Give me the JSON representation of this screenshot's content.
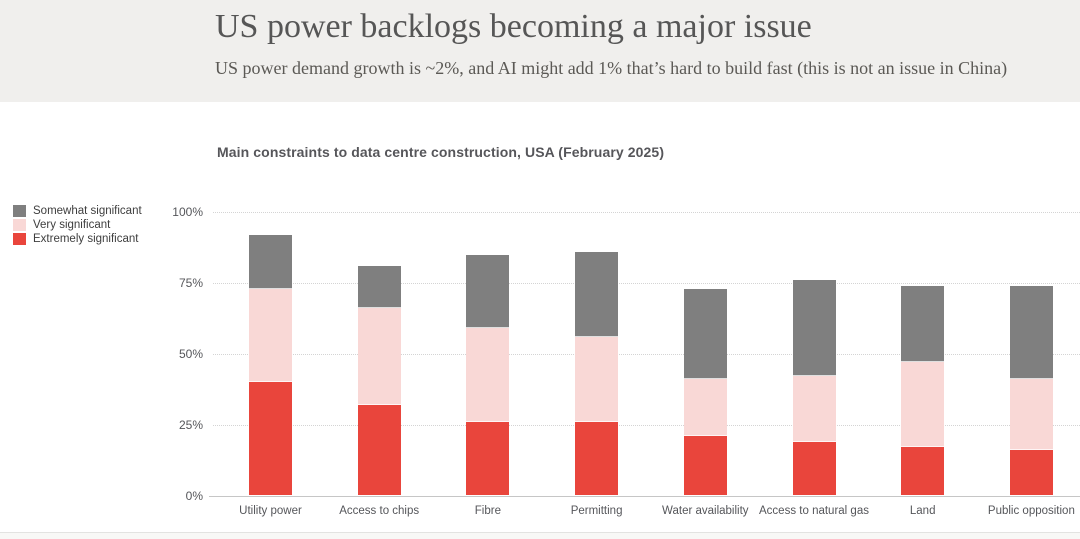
{
  "header": {
    "title": "US power backlogs becoming a major issue",
    "subtitle": "US power demand growth is ~2%, and AI might add 1% that’s hard to build fast (this is not an issue in China)"
  },
  "chart": {
    "title": "Main constraints to data centre construction, USA (February 2025)"
  },
  "chart_data": {
    "type": "bar",
    "stacked": true,
    "title": "Main constraints to data centre construction, USA (February 2025)",
    "categories": [
      "Utility power",
      "Access to chips",
      "Fibre",
      "Permitting",
      "Water availability",
      "Access to natural gas",
      "Land",
      "Public opposition"
    ],
    "series": [
      {
        "name": "Extremely significant",
        "color": "#e9453c",
        "values": [
          40,
          32,
          26,
          26,
          21,
          19,
          17,
          16
        ]
      },
      {
        "name": "Very significant",
        "color": "#f9d8d6",
        "values": [
          33,
          34,
          33,
          30,
          20,
          23,
          30,
          25
        ]
      },
      {
        "name": "Somewhat significant",
        "color": "#7f7f7f",
        "values": [
          19,
          15,
          26,
          30,
          32,
          34,
          27,
          33
        ]
      }
    ],
    "stack_totals": [
      92,
      81,
      85,
      86,
      73,
      76,
      74,
      74
    ],
    "y_axis": {
      "min": 0,
      "max": 100,
      "ticks": [
        {
          "value": 0,
          "label": "0%"
        },
        {
          "value": 25,
          "label": "25%"
        },
        {
          "value": 50,
          "label": "50%"
        },
        {
          "value": 75,
          "label": "75%"
        },
        {
          "value": 100,
          "label": "100%"
        }
      ],
      "grid": "dotted"
    },
    "xlabel": "",
    "ylabel": "",
    "legend_position": "top-left",
    "legend_order": [
      "Somewhat significant",
      "Very significant",
      "Extremely significant"
    ]
  },
  "colors": {
    "header_bg": "#f0efed",
    "title_text": "#565656",
    "extremely_significant": "#e9453c",
    "very_significant": "#f9d8d6",
    "somewhat_significant": "#7f7f7f",
    "gridline": "#d4d4d4",
    "axis_line": "#c6c6c6"
  }
}
